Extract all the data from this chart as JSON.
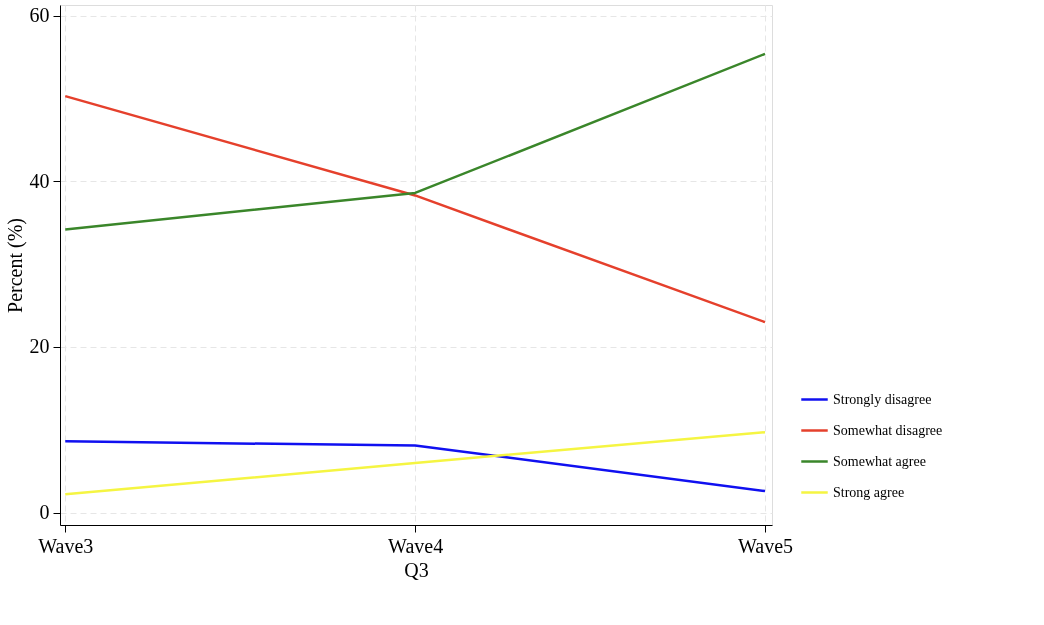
{
  "chart_data": {
    "type": "line",
    "xlabel": "Q3",
    "ylabel": "Percent (%)",
    "categories": [
      "Wave3",
      "Wave4",
      "Wave5"
    ],
    "series": [
      {
        "name": "Strongly disagree",
        "color": "#1010f0",
        "values": [
          8.6,
          8.1,
          2.6
        ]
      },
      {
        "name": "Somewhat disagree",
        "color": "#e5402c",
        "values": [
          50.3,
          38.3,
          23.0
        ]
      },
      {
        "name": "Somewhat agree",
        "color": "#3a862a",
        "values": [
          34.2,
          38.6,
          55.4
        ]
      },
      {
        "name": "Strong agree",
        "color": "#f5f542",
        "values": [
          2.2,
          6.0,
          9.7
        ]
      }
    ],
    "ylim": [
      -1.5,
      61.3
    ],
    "yticks": [
      0,
      20,
      40,
      60
    ],
    "grid": true,
    "legend": "right",
    "marker": "none",
    "line_style": "solid"
  }
}
